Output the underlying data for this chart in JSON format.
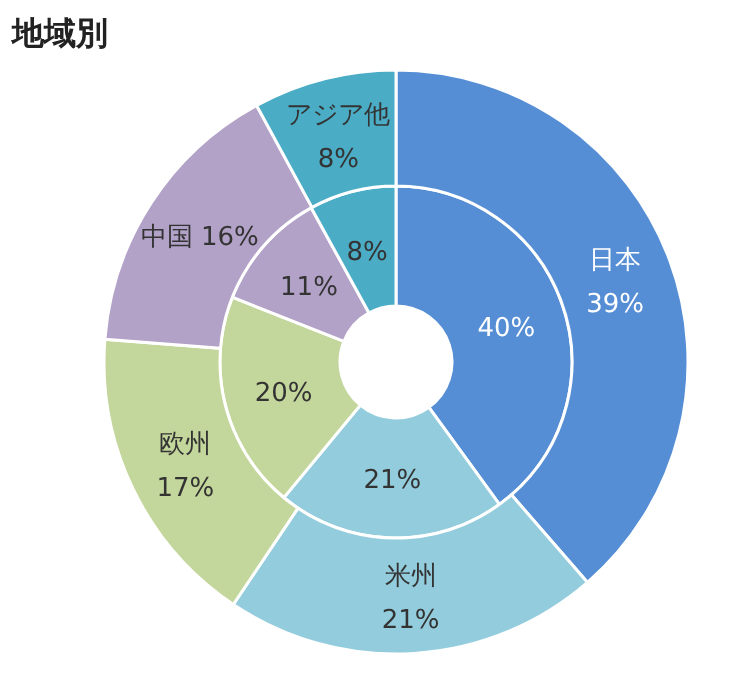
{
  "chart_data": {
    "type": "donut",
    "title": "地域別",
    "categories": [
      "日本",
      "米州",
      "欧州",
      "中国",
      "アジア他"
    ],
    "series": [
      {
        "values": [
          40,
          21,
          20,
          11,
          8
        ],
        "value_labels": [
          "40%",
          "21%",
          "20%",
          "11%",
          "8%"
        ],
        "colors": [
          "#558ed5",
          "#93cddd",
          "#c3d69b",
          "#b3a2c7",
          "#4bacc6"
        ]
      },
      {
        "values": [
          39,
          21,
          17,
          16,
          8
        ],
        "value_labels": [
          "39%",
          "21%",
          "17%",
          "16%",
          "8%"
        ],
        "colors": [
          "#558ed5",
          "#93cddd",
          "#c3d69b",
          "#b3a2c7",
          "#4bacc6"
        ]
      }
    ]
  }
}
